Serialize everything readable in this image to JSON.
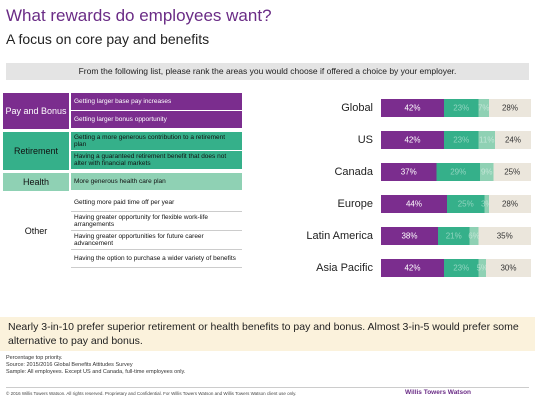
{
  "header": {
    "title": "What rewards do employees want?",
    "subtitle": "A focus on core pay and benefits",
    "banner": "From the following list, please rank the areas you would choose if offered a choice by your employer."
  },
  "table": {
    "groups": [
      {
        "label": "Pay and Bonus",
        "items": [
          "Getting larger base pay increases",
          "Getting larger bonus opportunity"
        ]
      },
      {
        "label": "Retirement",
        "items": [
          "Getting a more generous contribution to a retirement plan",
          "Having a guaranteed retirement benefit that does not alter with financial markets"
        ]
      },
      {
        "label": "Health",
        "items": [
          "More generous health care plan"
        ]
      },
      {
        "label": "Other",
        "items": [
          "Getting more paid time off per year",
          "Having greater opportunity for flexible work-life arrangements",
          "Having greater opportunities for future career advancement",
          "Having the option to purchase a wider variety of benefits"
        ]
      }
    ]
  },
  "chart_data": {
    "type": "stacked-bar",
    "categories": [
      "Global",
      "US",
      "Canada",
      "Europe",
      "Latin America",
      "Asia Pacific"
    ],
    "xlim": [
      0,
      100
    ],
    "series": [
      {
        "color": "#7b2d8e",
        "values": [
          42,
          42,
          37,
          44,
          38,
          42
        ],
        "value_labels": [
          "42%",
          "42%",
          "37%",
          "44%",
          "38%",
          "42%"
        ]
      },
      {
        "color": "#35b08a",
        "values": [
          23,
          23,
          29,
          25,
          21,
          23
        ],
        "value_labels": [
          "23%",
          "23%",
          "29%",
          "25%",
          "21%",
          "23%"
        ]
      },
      {
        "color": "#8fd1b4",
        "values": [
          7,
          11,
          9,
          3,
          6,
          5
        ],
        "value_labels": [
          "7%",
          "11%",
          "9%",
          "3%",
          "6%",
          "5%"
        ]
      },
      {
        "color": "#ebe6dc",
        "values": [
          28,
          24,
          25,
          28,
          35,
          30
        ],
        "value_labels": [
          "28%",
          "24%",
          "25%",
          "28%",
          "35%",
          "30%"
        ]
      }
    ]
  },
  "callout": "Nearly 3-in-10 prefer superior retirement or health benefits to pay and bonus. Almost 3-in-5 would prefer some alternative to pay and bonus.",
  "notes": [
    "Percentage top priority.",
    "Source: 2015/2016 Global Benefits Attitudes Survey",
    "Sample: All employees. Except US and Canada, full-time employees only."
  ],
  "footer": {
    "copyright": "© 2016 Willis Towers Watson. All rights reserved. Proprietary and Confidential. For Willis Towers Watson and Willis Towers Watson client use only.",
    "logo": "Willis Towers Watson"
  }
}
